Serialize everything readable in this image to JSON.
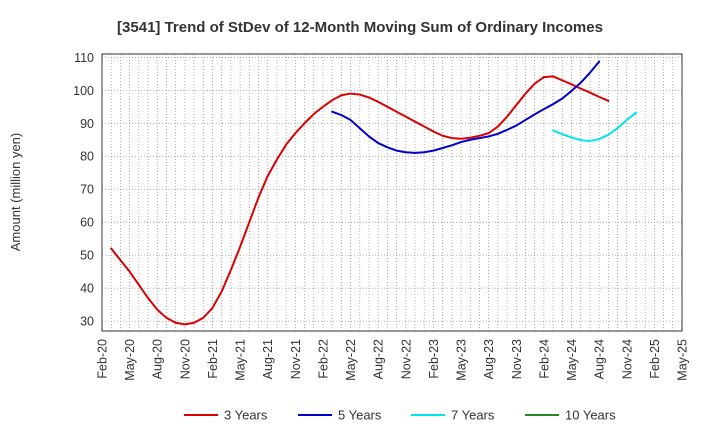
{
  "chart_data": {
    "type": "line",
    "title": "[3541]  Trend of StDev of 12-Month Moving Sum of Ordinary Incomes",
    "xlabel": "",
    "ylabel": "Amount (million yen)",
    "ylim": [
      27,
      111
    ],
    "yticks": [
      30,
      40,
      50,
      60,
      70,
      80,
      90,
      100,
      110
    ],
    "x_tick_labels": [
      "Feb-20",
      "May-20",
      "Aug-20",
      "Nov-20",
      "Feb-21",
      "May-21",
      "Aug-21",
      "Nov-21",
      "Feb-22",
      "May-22",
      "Aug-22",
      "Nov-22",
      "Feb-23",
      "May-23",
      "Aug-23",
      "Nov-23",
      "Feb-24",
      "May-24",
      "Aug-24",
      "Nov-24",
      "Feb-25",
      "May-25"
    ],
    "grid": true,
    "legend_position": "bottom",
    "series": [
      {
        "name": "3 Years",
        "color": "#dd0000",
        "start_index": 1,
        "values": [
          52,
          48.5,
          45,
          41,
          37,
          33.5,
          31,
          29.5,
          29,
          29.5,
          31,
          34,
          39,
          45.5,
          52.5,
          60,
          67.5,
          74,
          79,
          83.5,
          87,
          90,
          92.8,
          95,
          97,
          98.5,
          99,
          98.7,
          97.8,
          96.5,
          95,
          93.5,
          92,
          90.5,
          89,
          87.5,
          86.2,
          85.5,
          85.3,
          85.6,
          86.2,
          87,
          89,
          92,
          95.5,
          99,
          102,
          104,
          104.2,
          103,
          101.8,
          100.5,
          99.3,
          98,
          96.8
        ]
      },
      {
        "name": "5 Years",
        "color": "#0000cc",
        "start_index": 25,
        "values": [
          93.5,
          92.5,
          91,
          88.5,
          86,
          84,
          82.7,
          81.7,
          81.2,
          81,
          81.2,
          81.7,
          82.5,
          83.3,
          84.3,
          85,
          85.5,
          86,
          86.8,
          88,
          89.3,
          91,
          92.7,
          94.3,
          95.8,
          97.5,
          99.8,
          102.3,
          105.3,
          108.7
        ]
      },
      {
        "name": "7 Years",
        "color": "#00e5ee",
        "start_index": 49,
        "values": [
          87.8,
          86.7,
          85.7,
          84.9,
          84.6,
          85.2,
          86.5,
          88.5,
          91,
          93.2
        ]
      },
      {
        "name": "10 Years",
        "color": "#228b22",
        "start_index": 0,
        "values": []
      }
    ]
  }
}
